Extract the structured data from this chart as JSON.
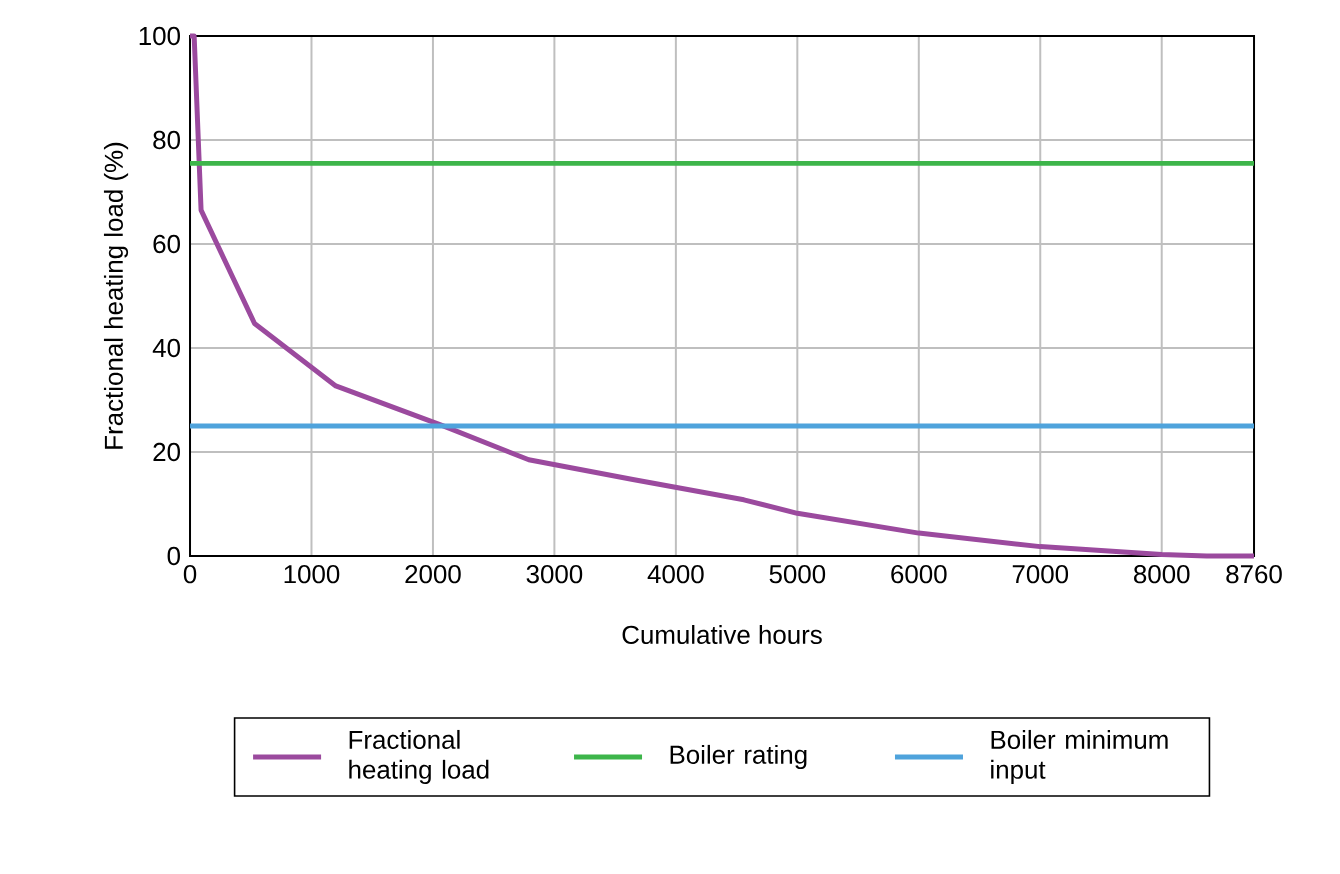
{
  "chart_data": {
    "type": "line",
    "xlabel": "Cumulative hours",
    "ylabel": "Fractional heating load (%)",
    "x": [
      0,
      34,
      91,
      531,
      1200,
      2074,
      2789,
      3646,
      4560,
      5000,
      6000,
      7000,
      8000,
      8370,
      8760
    ],
    "series": [
      {
        "name": "Fractional heating load",
        "color": "#9b4a9e",
        "values": [
          100,
          100,
          66.5,
          44.7,
          32.7,
          25.1,
          18.5,
          14.7,
          10.8,
          8.2,
          4.4,
          1.8,
          0.3,
          0,
          0
        ]
      }
    ],
    "ref_lines": [
      {
        "axis": "y",
        "value": 75.5,
        "label": "Boiler rating",
        "color": "#3db54a"
      },
      {
        "axis": "y",
        "value": 25,
        "label": "Boiler minimum input",
        "color": "#4fa3dc"
      }
    ],
    "xlim": [
      0,
      8760
    ],
    "ylim": [
      0,
      100
    ],
    "xticks": [
      0,
      1000,
      2000,
      3000,
      4000,
      5000,
      6000,
      7000,
      8000,
      8760
    ],
    "yticks": [
      0,
      20,
      40,
      60,
      80,
      100
    ],
    "grid": true,
    "legend": "bottom",
    "marker": "none",
    "line_style": "solid"
  }
}
